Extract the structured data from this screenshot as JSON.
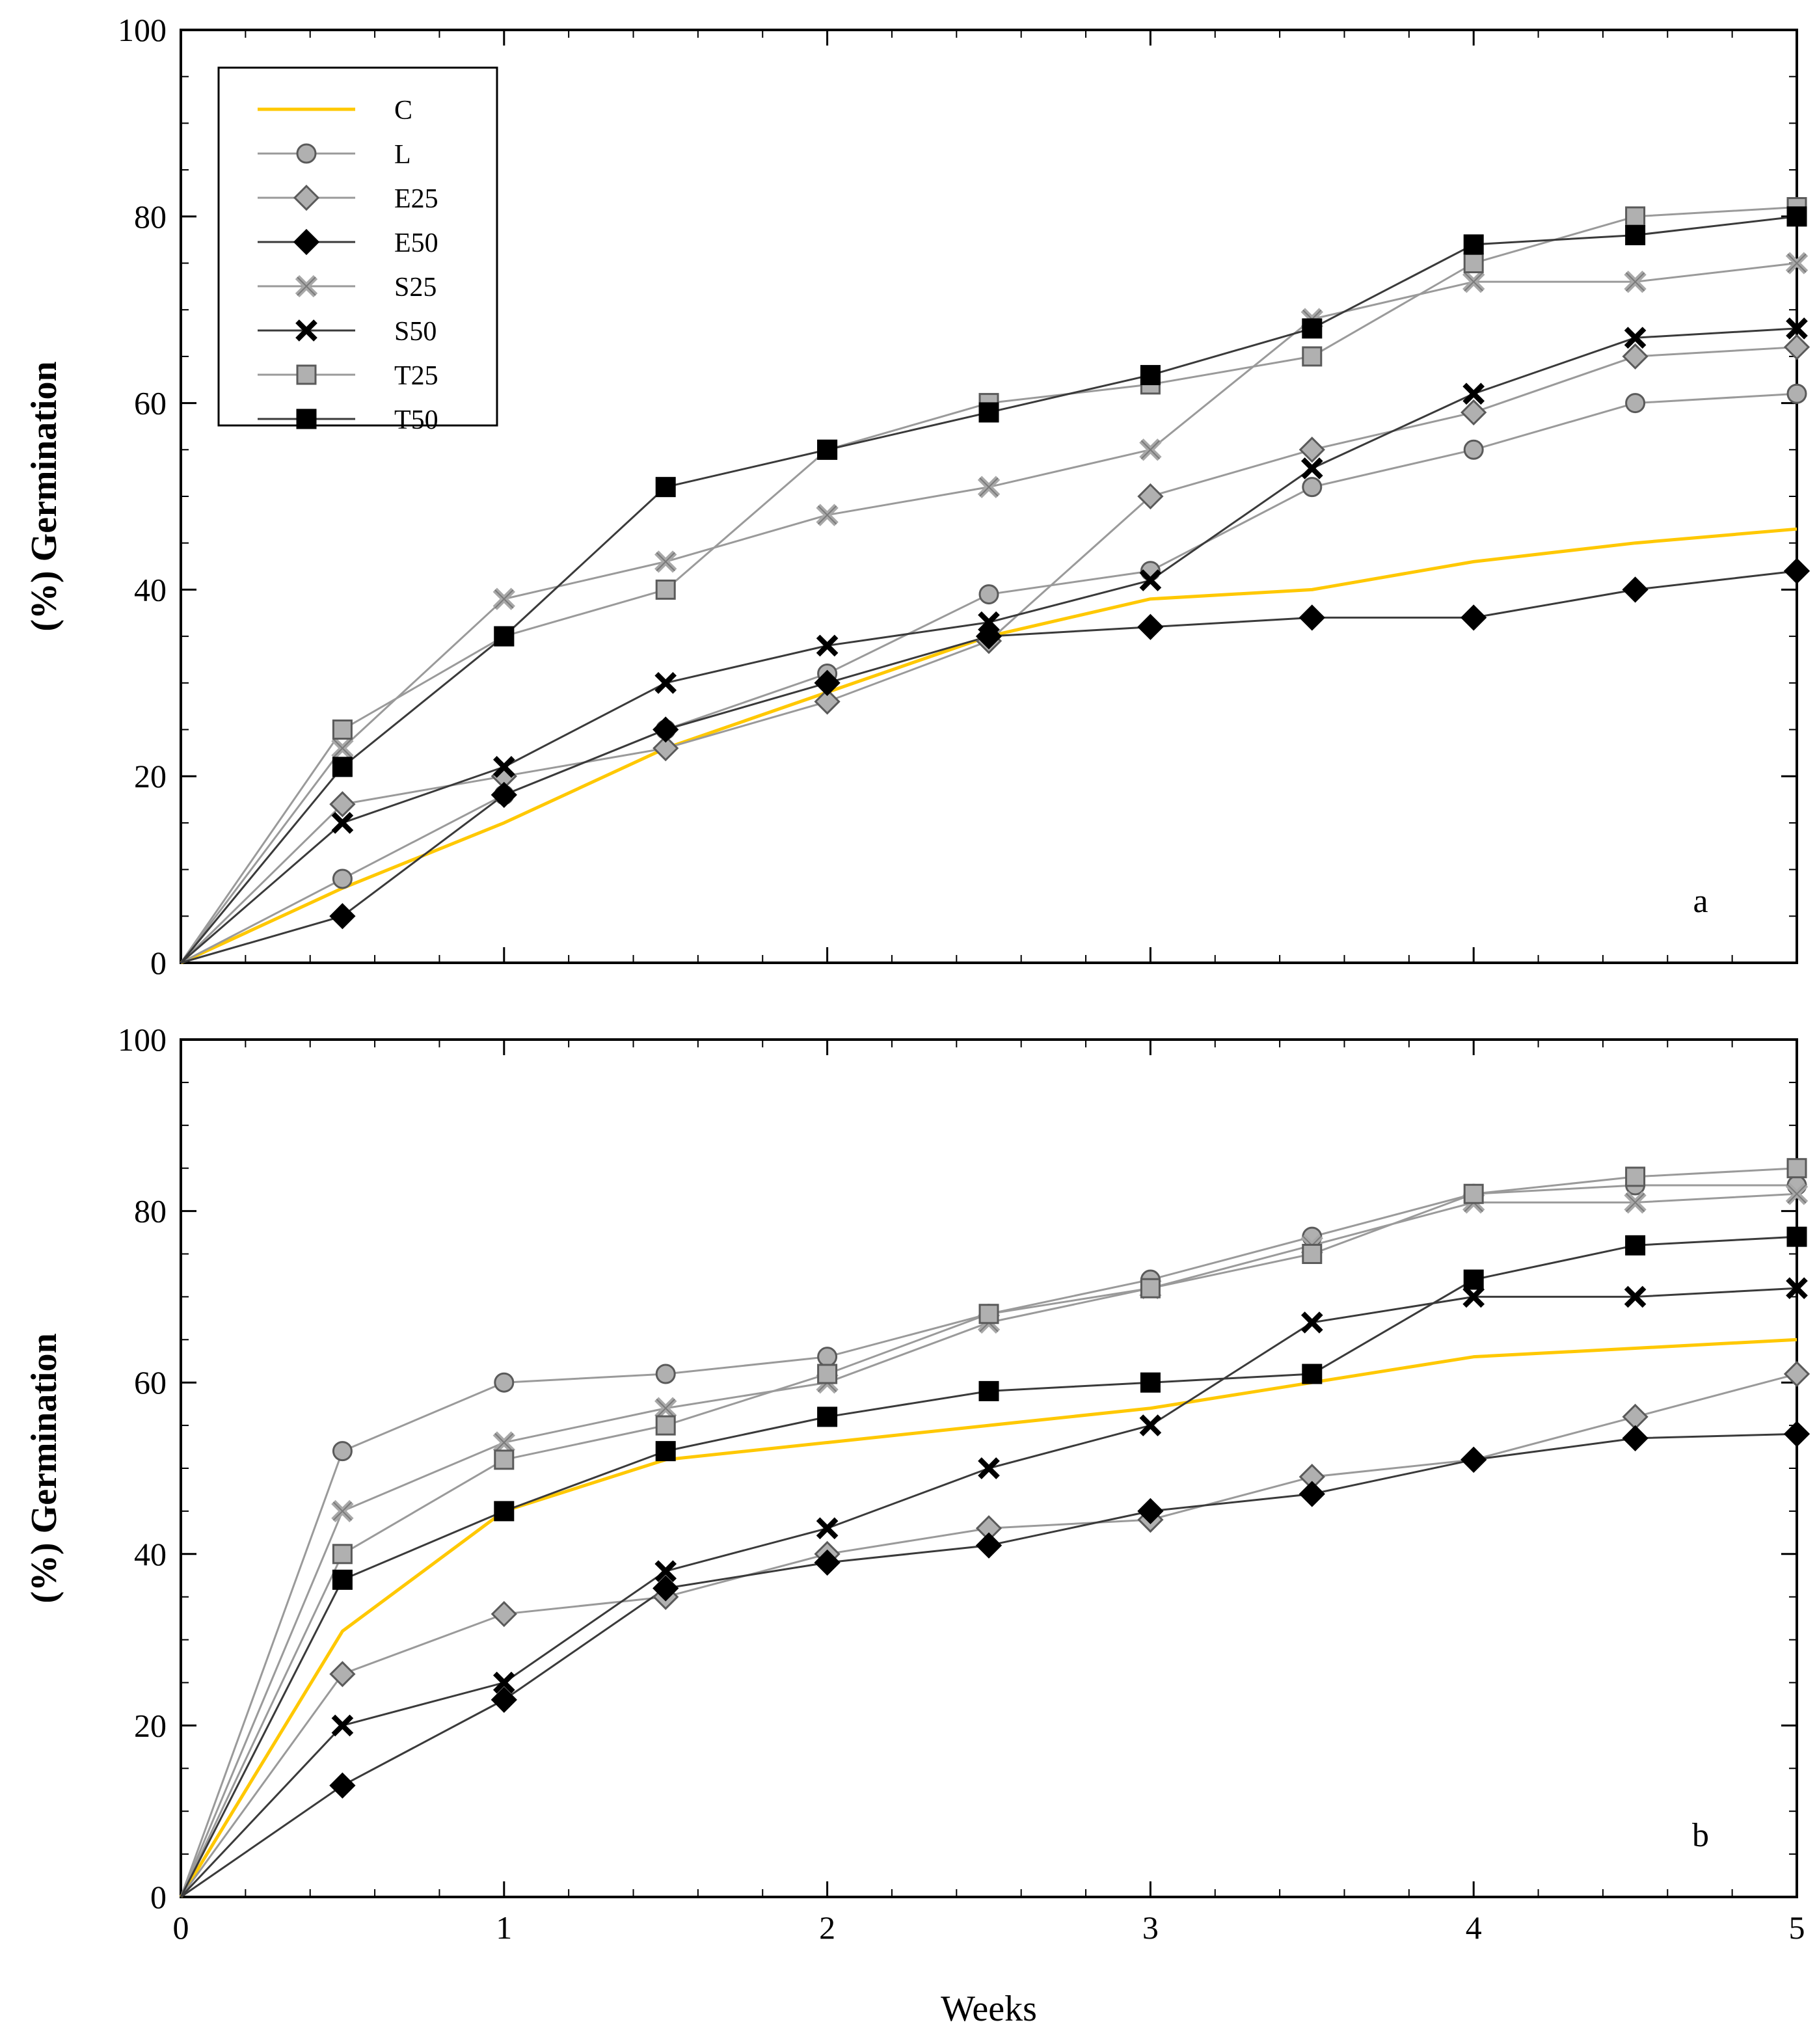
{
  "chart_data": [
    {
      "type": "line",
      "panel_label": "a",
      "xlabel": "",
      "ylabel": "(%) Germination",
      "xlim": [
        0,
        5
      ],
      "ylim": [
        0,
        100
      ],
      "x_ticks": [
        0,
        1,
        2,
        3,
        4,
        5
      ],
      "x_tick_labels": [
        "",
        "",
        "",
        "",
        "",
        ""
      ],
      "y_ticks": [
        0,
        20,
        40,
        60,
        80,
        100
      ],
      "y_tick_labels": [
        "0",
        "20",
        "40",
        "60",
        "80",
        "100"
      ],
      "legend_position": "top-left",
      "x": [
        0,
        0.5,
        1,
        1.5,
        2,
        2.5,
        3,
        3.5,
        4,
        4.5,
        5
      ],
      "series": [
        {
          "name": "C",
          "marker": "none",
          "line_color": "#ffc800",
          "values": [
            0,
            8,
            15,
            23,
            29,
            35,
            39,
            40,
            43,
            45,
            46.5
          ]
        },
        {
          "name": "L",
          "marker": "circle",
          "line_color": "#9a9a9a",
          "values": [
            0,
            9,
            18,
            25,
            31,
            39.5,
            42,
            51,
            55,
            60,
            61
          ]
        },
        {
          "name": "E25",
          "marker": "diamond",
          "line_color": "#9a9a9a",
          "values": [
            0,
            17,
            20,
            23,
            28,
            34.5,
            50,
            55,
            59,
            65,
            66
          ]
        },
        {
          "name": "E50",
          "marker": "diamond",
          "line_color": "#3a3a3a",
          "values": [
            0,
            5,
            18,
            25,
            30,
            35,
            36,
            37,
            37,
            40,
            42
          ]
        },
        {
          "name": "S25",
          "marker": "x",
          "line_color": "#9a9a9a",
          "values": [
            0,
            23,
            39,
            43,
            48,
            51,
            55,
            69,
            73,
            73,
            75
          ]
        },
        {
          "name": "S50",
          "marker": "x",
          "line_color": "#3a3a3a",
          "values": [
            0,
            15,
            21,
            30,
            34,
            36.5,
            41,
            53,
            61,
            67,
            68
          ]
        },
        {
          "name": "T25",
          "marker": "square",
          "line_color": "#9a9a9a",
          "values": [
            0,
            25,
            35,
            40,
            55,
            60,
            62,
            65,
            75,
            80,
            81
          ]
        },
        {
          "name": "T50",
          "marker": "square",
          "line_color": "#3a3a3a",
          "values": [
            0,
            21,
            35,
            51,
            55,
            59,
            63,
            68,
            77,
            78,
            80
          ]
        }
      ]
    },
    {
      "type": "line",
      "panel_label": "b",
      "xlabel": "Weeks",
      "ylabel": "(%) Germination",
      "xlim": [
        0,
        5
      ],
      "ylim": [
        0,
        100
      ],
      "x_ticks": [
        0,
        1,
        2,
        3,
        4,
        5
      ],
      "x_tick_labels": [
        "0",
        "1",
        "2",
        "3",
        "4",
        "5"
      ],
      "y_ticks": [
        0,
        20,
        40,
        60,
        80,
        100
      ],
      "y_tick_labels": [
        "0",
        "20",
        "40",
        "60",
        "80",
        "100"
      ],
      "x": [
        0,
        0.5,
        1,
        1.5,
        2,
        2.5,
        3,
        3.5,
        4,
        4.5,
        5
      ],
      "series": [
        {
          "name": "C",
          "marker": "none",
          "line_color": "#ffc800",
          "values": [
            0,
            31,
            45,
            51,
            53,
            55,
            57,
            60,
            63,
            64,
            65
          ]
        },
        {
          "name": "L",
          "marker": "circle",
          "line_color": "#9a9a9a",
          "values": [
            0,
            52,
            60,
            61,
            63,
            68,
            72,
            77,
            82,
            83,
            83
          ]
        },
        {
          "name": "E25",
          "marker": "diamond",
          "line_color": "#9a9a9a",
          "values": [
            0,
            26,
            33,
            35,
            40,
            43,
            44,
            49,
            51,
            56,
            61
          ]
        },
        {
          "name": "E50",
          "marker": "diamond",
          "line_color": "#3a3a3a",
          "values": [
            0,
            13,
            23,
            36,
            39,
            41,
            45,
            47,
            51,
            53.5,
            54
          ]
        },
        {
          "name": "S25",
          "marker": "x",
          "line_color": "#9a9a9a",
          "values": [
            0,
            45,
            53,
            57,
            60,
            67,
            71,
            76,
            81,
            81,
            82
          ]
        },
        {
          "name": "S50",
          "marker": "x",
          "line_color": "#3a3a3a",
          "values": [
            0,
            20,
            25,
            38,
            43,
            50,
            55,
            67,
            70,
            70,
            71
          ]
        },
        {
          "name": "T25",
          "marker": "square",
          "line_color": "#9a9a9a",
          "values": [
            0,
            40,
            51,
            55,
            61,
            68,
            71,
            75,
            82,
            84,
            85
          ]
        },
        {
          "name": "T50",
          "marker": "square",
          "line_color": "#3a3a3a",
          "values": [
            0,
            37,
            45,
            52,
            56,
            59,
            60,
            61,
            72,
            76,
            77
          ]
        }
      ]
    }
  ],
  "marker_styles": {
    "light_fill": "#b0b0b0",
    "dark_fill": "#000000",
    "stroke": "#5a5a5a"
  }
}
